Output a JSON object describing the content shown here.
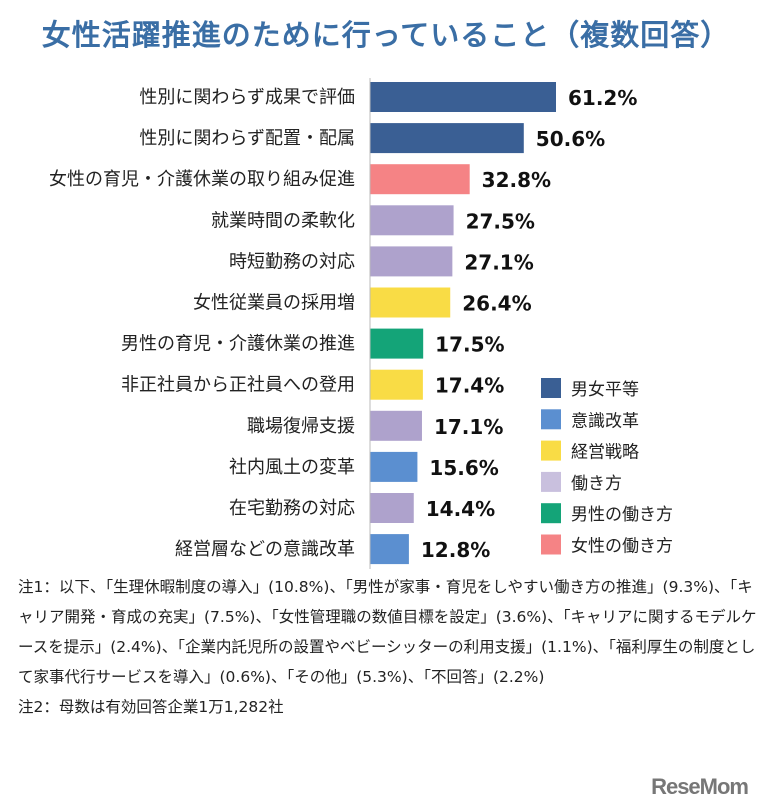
{
  "chart_data": {
    "type": "bar",
    "orientation": "horizontal",
    "title": "女性活躍推進のために行っていること（複数回答）",
    "categories": [
      "性別に関わらず成果で評価",
      "性別に関わらず配置・配属",
      "女性の育児・介護休業の取り組み促進",
      "就業時間の柔軟化",
      "時短勤務の対応",
      "女性従業員の採用増",
      "男性の育児・介護休業の推進",
      "非正社員から正社員への登用",
      "職場復帰支援",
      "社内風土の変革",
      "在宅勤務の対応",
      "経営層などの意識改革"
    ],
    "values": [
      61.2,
      50.6,
      32.8,
      27.5,
      27.1,
      26.4,
      17.5,
      17.4,
      17.1,
      15.6,
      14.4,
      12.8
    ],
    "value_labels": [
      "61.2%",
      "50.6%",
      "32.8%",
      "27.5%",
      "27.1%",
      "26.4%",
      "17.5%",
      "17.4%",
      "17.1%",
      "15.6%",
      "14.4%",
      "12.8%"
    ],
    "groups": [
      0,
      0,
      5,
      3,
      3,
      2,
      4,
      2,
      3,
      1,
      3,
      1
    ],
    "unit": "%",
    "xlim": [
      0,
      70
    ],
    "legend": {
      "placement": "bottom-right",
      "entries": [
        {
          "label": "男女平等",
          "color": "#3a5f94"
        },
        {
          "label": "意識改革",
          "color": "#5b8fd0"
        },
        {
          "label": "経営戦略",
          "color": "#f9dc45"
        },
        {
          "label": "働き方",
          "color": "#c9c0de"
        },
        {
          "label": "男性の働き方",
          "color": "#14a478"
        },
        {
          "label": "女性の働き方",
          "color": "#f58385"
        }
      ]
    },
    "bar_colors": [
      "#3a5f94",
      "#5b8fd0",
      "#f9dc45",
      "#aea2cc",
      "#14a478",
      "#f58385"
    ]
  },
  "notes": [
    "注1：以下、「生理休暇制度の導入」(10.8%)、「男性が家事・育児をしやすい働き方の推進」(9.3%)、「キャリア開発・育成の充実」(7.5%)、「女性管理職の数値目標を設定」(3.6%)、「キャリアに関するモデルケースを提示」(2.4%)、「企業内託児所の設置やベビーシッターの利用支援」(1.1%)、「福利厚生の制度として家事代行サービスを導入」(0.6%)、「その他」(5.3%)、「不回答」(2.2%)",
    "注2：母数は有効回答企業1万1,282社"
  ],
  "logo": "ReseMom"
}
